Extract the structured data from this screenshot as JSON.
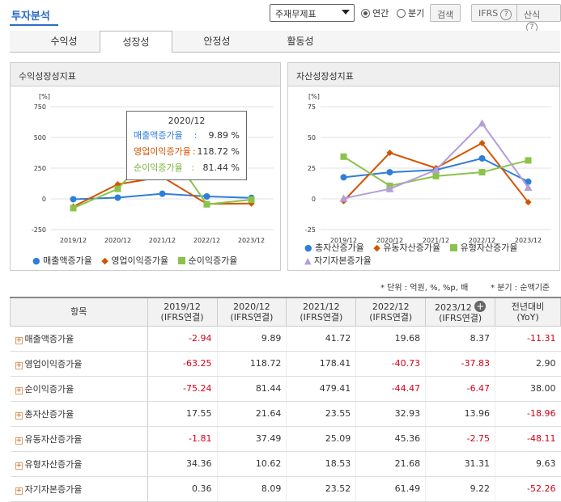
{
  "header": {
    "title": "투자분석",
    "select_value": "주재무제표",
    "radio_annual": "연간",
    "radio_quarter": "분기",
    "search_label": "검색",
    "ifrs_label": "IFRS",
    "formula_label": "산식"
  },
  "tabs": [
    "수익성",
    "성장성",
    "안정성",
    "활동성"
  ],
  "left_panel": {
    "title": "수익성장성지표",
    "unit": "[%]",
    "tooltip": {
      "title": "2020/12",
      "rows": [
        {
          "label": "매출액증가율",
          "sep": ":",
          "value": "9.89 %"
        },
        {
          "label": "영업이익증가율",
          "sep": ":",
          "value": "118.72 %"
        },
        {
          "label": "순이익증가율",
          "sep": ":",
          "value": "81.44 %"
        }
      ]
    },
    "legend": [
      "매출액증가율",
      "영업이익증가율",
      "순이익증가율"
    ]
  },
  "right_panel": {
    "title": "자산성장성지표",
    "unit": "[%]",
    "legend": [
      "총자산증가율",
      "유동자산증가율",
      "유형자산증가율",
      "자기자본증가율"
    ]
  },
  "chart_data": [
    {
      "type": "line",
      "title": "수익성장성지표",
      "categories": [
        "2019/12",
        "2020/12",
        "2021/12",
        "2022/12",
        "2023/12"
      ],
      "ylim": [
        -250,
        750
      ],
      "yticks": [
        "750",
        "500",
        "250",
        "0",
        "-250"
      ],
      "grid": true,
      "legend_position": "bottom",
      "series": [
        {
          "name": "매출액증가율",
          "color": "#2f7ed8",
          "marker": "circle",
          "values": [
            -2.94,
            9.89,
            41.72,
            19.68,
            8.37
          ]
        },
        {
          "name": "영업이익증가율",
          "color": "#d35400",
          "marker": "diamond",
          "values": [
            -63.25,
            118.72,
            178.41,
            -40.73,
            -37.83
          ]
        },
        {
          "name": "순이익증가율",
          "color": "#8bc34a",
          "marker": "square",
          "values": [
            -75.24,
            81.44,
            479.41,
            -44.47,
            -6.47
          ]
        }
      ]
    },
    {
      "type": "line",
      "title": "자산성장성지표",
      "categories": [
        "2019/12",
        "2020/12",
        "2021/12",
        "2022/12",
        "2023/12"
      ],
      "ylim": [
        -25,
        75
      ],
      "yticks": [
        "75",
        "50",
        "25",
        "0",
        "-25"
      ],
      "grid": true,
      "legend_position": "bottom",
      "series": [
        {
          "name": "총자산증가율",
          "color": "#2f7ed8",
          "marker": "circle",
          "values": [
            17.55,
            21.64,
            23.55,
            32.93,
            13.96
          ]
        },
        {
          "name": "유동자산증가율",
          "color": "#d35400",
          "marker": "diamond",
          "values": [
            -1.81,
            37.49,
            25.09,
            45.36,
            -2.75
          ]
        },
        {
          "name": "유형자산증가율",
          "color": "#8bc34a",
          "marker": "square",
          "values": [
            34.36,
            10.62,
            18.53,
            21.68,
            31.31
          ]
        },
        {
          "name": "자기자본증가율",
          "color": "#b39ddb",
          "marker": "triangle",
          "values": [
            0.36,
            8.09,
            23.52,
            61.49,
            9.22
          ]
        }
      ]
    }
  ],
  "notes": {
    "unit_note": "* 단위 : 억원, %, %p, 배",
    "quarter_note": "* 분기 : 순액기준"
  },
  "table": {
    "header_item": "항목",
    "columns": [
      {
        "year": "2019/12",
        "basis": "(IFRS연결)"
      },
      {
        "year": "2020/12",
        "basis": "(IFRS연결)"
      },
      {
        "year": "2021/12",
        "basis": "(IFRS연결)"
      },
      {
        "year": "2022/12",
        "basis": "(IFRS연결)"
      },
      {
        "year": "2023/12",
        "basis": "(IFRS연결)"
      }
    ],
    "yoy_header": "전년대비",
    "yoy_sub": "(YoY)",
    "rows": [
      {
        "name": "매출액증가율",
        "values": [
          "-2.94",
          "9.89",
          "41.72",
          "19.68",
          "8.37"
        ],
        "yoy": "-11.31"
      },
      {
        "name": "영업이익증가율",
        "values": [
          "-63.25",
          "118.72",
          "178.41",
          "-40.73",
          "-37.83"
        ],
        "yoy": "2.90"
      },
      {
        "name": "순이익증가율",
        "values": [
          "-75.24",
          "81.44",
          "479.41",
          "-44.47",
          "-6.47"
        ],
        "yoy": "38.00"
      },
      {
        "name": "총자산증가율",
        "values": [
          "17.55",
          "21.64",
          "23.55",
          "32.93",
          "13.96"
        ],
        "yoy": "-18.96"
      },
      {
        "name": "유동자산증가율",
        "values": [
          "-1.81",
          "37.49",
          "25.09",
          "45.36",
          "-2.75"
        ],
        "yoy": "-48.11"
      },
      {
        "name": "유형자산증가율",
        "values": [
          "34.36",
          "10.62",
          "18.53",
          "21.68",
          "31.31"
        ],
        "yoy": "9.63"
      },
      {
        "name": "자기자본증가율",
        "values": [
          "0.36",
          "8.09",
          "23.52",
          "61.49",
          "9.22"
        ],
        "yoy": "-52.26"
      }
    ]
  }
}
